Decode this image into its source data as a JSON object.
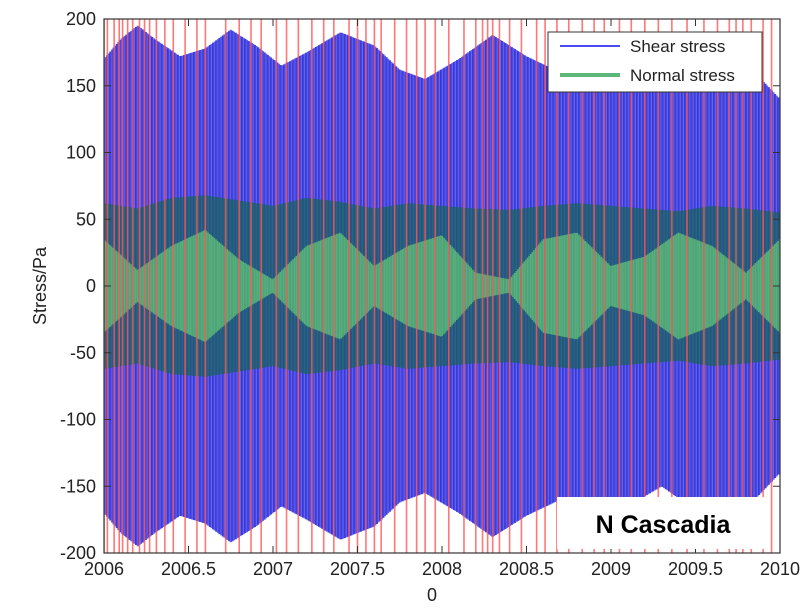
{
  "chart_data": {
    "type": "line",
    "title": "",
    "xlabel": "0",
    "ylabel": "Stress/Pa",
    "xlim": [
      2006,
      2010
    ],
    "ylim": [
      -200,
      200
    ],
    "x_ticks": [
      2006,
      2006.5,
      2007,
      2007.5,
      2008,
      2008.5,
      2009,
      2009.5,
      2010
    ],
    "x_tick_labels": [
      "2006",
      "2006.5",
      "2007",
      "2007.5",
      "2008",
      "2008.5",
      "2009",
      "2009.5",
      "2010"
    ],
    "y_ticks": [
      200,
      150,
      100,
      50,
      0,
      -50,
      -100,
      -150,
      -200
    ],
    "y_tick_labels": [
      "200",
      "150",
      "100",
      "50",
      "0",
      "-50",
      "-100",
      "-150",
      "-200"
    ],
    "grid": false,
    "legend_position": "top-right",
    "annotation": "N Cascadia",
    "series": [
      {
        "name": "Shear stress",
        "color": "#4a4af0",
        "envelope_x": [
          2006.0,
          2006.1,
          2006.2,
          2006.3,
          2006.45,
          2006.6,
          2006.75,
          2006.9,
          2007.05,
          2007.2,
          2007.4,
          2007.6,
          2007.75,
          2007.9,
          2008.1,
          2008.3,
          2008.5,
          2008.7,
          2008.9,
          2009.1,
          2009.3,
          2009.5,
          2009.7,
          2009.85,
          2010.0
        ],
        "envelope_amplitude": [
          170,
          185,
          195,
          185,
          172,
          178,
          192,
          180,
          165,
          175,
          190,
          180,
          162,
          155,
          170,
          188,
          172,
          160,
          178,
          165,
          150,
          168,
          185,
          160,
          140
        ],
        "inner_amplitude": [
          90,
          60,
          20,
          70,
          110,
          60,
          15,
          60,
          100,
          120,
          70,
          25,
          60,
          110,
          90,
          40,
          60,
          100,
          130,
          80,
          30,
          60,
          110,
          75,
          55
        ]
      },
      {
        "name": "Normal stress",
        "color": "#5cb87a",
        "envelope_x": [
          2006.0,
          2006.2,
          2006.4,
          2006.6,
          2006.8,
          2007.0,
          2007.2,
          2007.4,
          2007.6,
          2007.8,
          2008.0,
          2008.2,
          2008.4,
          2008.6,
          2008.8,
          2009.0,
          2009.2,
          2009.4,
          2009.6,
          2009.8,
          2010.0
        ],
        "envelope_amplitude": [
          62,
          58,
          66,
          68,
          64,
          60,
          66,
          63,
          58,
          62,
          60,
          58,
          57,
          60,
          62,
          60,
          58,
          56,
          60,
          58,
          55
        ],
        "inner_amplitude": [
          35,
          12,
          30,
          42,
          20,
          5,
          30,
          40,
          15,
          30,
          38,
          10,
          5,
          35,
          40,
          15,
          22,
          40,
          30,
          10,
          35
        ]
      }
    ],
    "vertical_markers": {
      "color": "#ff5555",
      "x": [
        2006.0,
        2006.02,
        2006.06,
        2006.09,
        2006.11,
        2006.14,
        2006.17,
        2006.21,
        2006.24,
        2006.27,
        2006.31,
        2006.36,
        2006.41,
        2006.48,
        2006.55,
        2006.6,
        2006.72,
        2006.8,
        2006.87,
        2006.93,
        2007.02,
        2007.08,
        2007.15,
        2007.23,
        2007.3,
        2007.36,
        2007.45,
        2007.5,
        2007.55,
        2007.6,
        2007.64,
        2007.72,
        2007.79,
        2007.85,
        2007.9,
        2007.96,
        2008.04,
        2008.13,
        2008.2,
        2008.24,
        2008.27,
        2008.3,
        2008.34,
        2008.4,
        2008.47,
        2008.56,
        2008.61,
        2008.68,
        2008.75,
        2008.83,
        2008.9,
        2008.96,
        2009.05,
        2009.12,
        2009.2,
        2009.28,
        2009.36,
        2009.45,
        2009.55,
        2009.63,
        2009.7,
        2009.74,
        2009.78,
        2009.83,
        2009.9,
        2009.95
      ]
    }
  },
  "legend": {
    "items": [
      {
        "label": "Shear stress",
        "color": "#4a4af0"
      },
      {
        "label": "Normal stress",
        "color": "#5cb87a"
      }
    ]
  }
}
